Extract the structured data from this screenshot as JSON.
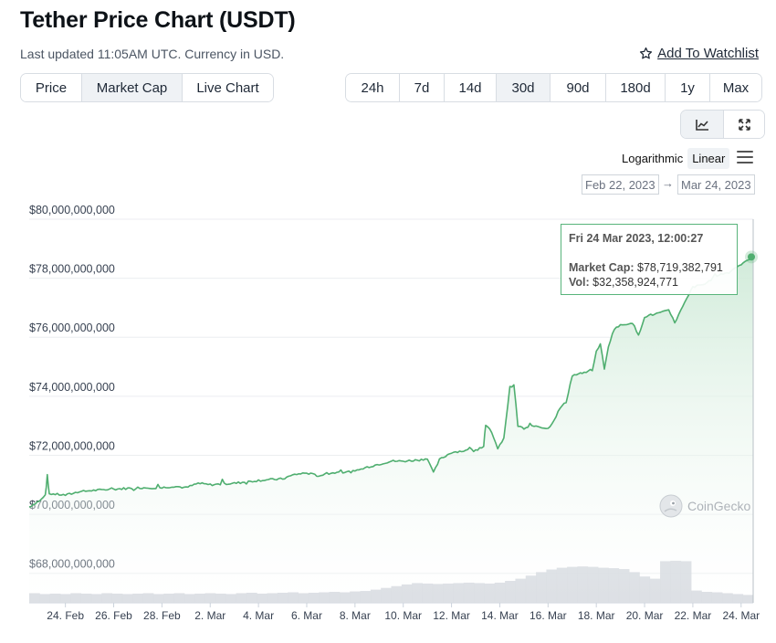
{
  "header": {
    "title": "Tether Price Chart (USDT)",
    "updated": "Last updated 11:05AM UTC. Currency in USD.",
    "watchlist_label": "Add To Watchlist"
  },
  "tabs": [
    {
      "label": "Price",
      "active": false
    },
    {
      "label": "Market Cap",
      "active": true
    },
    {
      "label": "Live Chart",
      "active": false
    }
  ],
  "ranges": [
    {
      "label": "24h",
      "active": false
    },
    {
      "label": "7d",
      "active": false
    },
    {
      "label": "14d",
      "active": false
    },
    {
      "label": "30d",
      "active": true
    },
    {
      "label": "90d",
      "active": false
    },
    {
      "label": "180d",
      "active": false
    },
    {
      "label": "1y",
      "active": false
    },
    {
      "label": "Max",
      "active": false
    }
  ],
  "view_buttons": [
    {
      "icon": "line-chart-icon",
      "active": true
    },
    {
      "icon": "fullscreen-icon",
      "active": false
    }
  ],
  "scale": {
    "log_label": "Logarithmic",
    "linear_label": "Linear",
    "selected": "Linear"
  },
  "date_range": {
    "from": "Feb 22, 2023",
    "arrow": "→",
    "to": "Mar 24, 2023"
  },
  "tooltip": {
    "date": "Fri 24 Mar 2023, 12:00:27",
    "market_cap_label": "Market Cap:",
    "market_cap_value": "$78,719,382,791",
    "vol_label": "Vol:",
    "vol_value": "$32,358,924,771"
  },
  "watermark": "CoinGecko",
  "colors": {
    "line": "#4fae6f",
    "fill_top": "#cfead8",
    "volume": "#cfd4da",
    "tooltip_border": "#58b47b"
  },
  "chart_data": {
    "type": "area",
    "title": "",
    "xlabel": "",
    "ylabel": "",
    "ylim": [
      67000000000,
      80000000000
    ],
    "y_ticks": [
      68000000000,
      70000000000,
      72000000000,
      74000000000,
      76000000000,
      78000000000,
      80000000000
    ],
    "y_tick_labels": [
      "$68,000,000,000",
      "$70,000,000,000",
      "$72,000,000,000",
      "$74,000,000,000",
      "$76,000,000,000",
      "$78,000,000,000",
      "$80,000,000,000"
    ],
    "x_ticks": [
      {
        "date": "2023-02-24",
        "label": "24. Feb"
      },
      {
        "date": "2023-02-26",
        "label": "26. Feb"
      },
      {
        "date": "2023-02-28",
        "label": "28. Feb"
      },
      {
        "date": "2023-03-02",
        "label": "2. Mar"
      },
      {
        "date": "2023-03-04",
        "label": "4. Mar"
      },
      {
        "date": "2023-03-06",
        "label": "6. Mar"
      },
      {
        "date": "2023-03-08",
        "label": "8. Mar"
      },
      {
        "date": "2023-03-10",
        "label": "10. Mar"
      },
      {
        "date": "2023-03-12",
        "label": "12. Mar"
      },
      {
        "date": "2023-03-14",
        "label": "14. Mar"
      },
      {
        "date": "2023-03-16",
        "label": "16. Mar"
      },
      {
        "date": "2023-03-18",
        "label": "18. Mar"
      },
      {
        "date": "2023-03-20",
        "label": "20. Mar"
      },
      {
        "date": "2023-03-22",
        "label": "22. Mar"
      },
      {
        "date": "2023-03-24",
        "label": "24. Mar"
      }
    ],
    "x_start": "2023-02-22T12:00",
    "x_end": "2023-03-24T12:00",
    "grid": true,
    "series": [
      {
        "name": "Market Cap",
        "points": [
          [
            "2023-02-22T12:00",
            70250000000
          ],
          [
            "2023-02-23T00:00",
            70500000000
          ],
          [
            "2023-02-23T04:00",
            70650000000
          ],
          [
            "2023-02-23T06:00",
            71200000000
          ],
          [
            "2023-02-23T08:00",
            70700000000
          ],
          [
            "2023-02-24T00:00",
            70650000000
          ],
          [
            "2023-02-24T12:00",
            70750000000
          ],
          [
            "2023-02-25T00:00",
            70800000000
          ],
          [
            "2023-02-26T00:00",
            70850000000
          ],
          [
            "2023-02-27T00:00",
            70900000000
          ],
          [
            "2023-02-28T00:00",
            70900000000
          ],
          [
            "2023-02-28T12:00",
            70950000000
          ],
          [
            "2023-03-01T00:00",
            70900000000
          ],
          [
            "2023-03-01T12:00",
            71050000000
          ],
          [
            "2023-03-02T00:00",
            71000000000
          ],
          [
            "2023-03-03T00:00",
            71050000000
          ],
          [
            "2023-03-04T00:00",
            71150000000
          ],
          [
            "2023-03-05T00:00",
            71200000000
          ],
          [
            "2023-03-05T12:00",
            71350000000
          ],
          [
            "2023-03-06T00:00",
            71400000000
          ],
          [
            "2023-03-06T12:00",
            71300000000
          ],
          [
            "2023-03-07T00:00",
            71400000000
          ],
          [
            "2023-03-08T00:00",
            71450000000
          ],
          [
            "2023-03-08T12:00",
            71600000000
          ],
          [
            "2023-03-09T00:00",
            71700000000
          ],
          [
            "2023-03-09T12:00",
            71800000000
          ],
          [
            "2023-03-10T00:00",
            71800000000
          ],
          [
            "2023-03-10T18:00",
            71850000000
          ],
          [
            "2023-03-11T00:00",
            71900000000
          ],
          [
            "2023-03-11T06:00",
            71400000000
          ],
          [
            "2023-03-11T12:00",
            71850000000
          ],
          [
            "2023-03-12T00:00",
            72100000000
          ],
          [
            "2023-03-12T12:00",
            72150000000
          ],
          [
            "2023-03-13T00:00",
            72200000000
          ],
          [
            "2023-03-13T08:00",
            72300000000
          ],
          [
            "2023-03-13T10:00",
            73000000000
          ],
          [
            "2023-03-13T16:00",
            72800000000
          ],
          [
            "2023-03-13T22:00",
            72200000000
          ],
          [
            "2023-03-14T04:00",
            72600000000
          ],
          [
            "2023-03-14T10:00",
            74300000000
          ],
          [
            "2023-03-14T14:00",
            74400000000
          ],
          [
            "2023-03-14T18:00",
            73000000000
          ],
          [
            "2023-03-15T00:00",
            72900000000
          ],
          [
            "2023-03-15T12:00",
            73000000000
          ],
          [
            "2023-03-16T00:00",
            72900000000
          ],
          [
            "2023-03-16T06:00",
            73200000000
          ],
          [
            "2023-03-16T12:00",
            73600000000
          ],
          [
            "2023-03-16T18:00",
            73800000000
          ],
          [
            "2023-03-17T00:00",
            74700000000
          ],
          [
            "2023-03-17T12:00",
            74800000000
          ],
          [
            "2023-03-17T20:00",
            74900000000
          ],
          [
            "2023-03-18T00:00",
            75500000000
          ],
          [
            "2023-03-18T04:00",
            75800000000
          ],
          [
            "2023-03-18T08:00",
            74900000000
          ],
          [
            "2023-03-18T12:00",
            75700000000
          ],
          [
            "2023-03-18T18:00",
            76300000000
          ],
          [
            "2023-03-19T00:00",
            76400000000
          ],
          [
            "2023-03-19T12:00",
            76500000000
          ],
          [
            "2023-03-19T18:00",
            76050000000
          ],
          [
            "2023-03-20T00:00",
            76700000000
          ],
          [
            "2023-03-20T12:00",
            76800000000
          ],
          [
            "2023-03-21T00:00",
            76900000000
          ],
          [
            "2023-03-21T06:00",
            76500000000
          ],
          [
            "2023-03-21T12:00",
            76900000000
          ],
          [
            "2023-03-22T00:00",
            77700000000
          ],
          [
            "2023-03-22T12:00",
            77800000000
          ],
          [
            "2023-03-23T00:00",
            78100000000
          ],
          [
            "2023-03-23T12:00",
            78200000000
          ],
          [
            "2023-03-24T00:00",
            78500000000
          ],
          [
            "2023-03-24T12:00",
            78720000000
          ]
        ]
      },
      {
        "name": "Volume",
        "relative": [
          0.22,
          0.2,
          0.21,
          0.2,
          0.22,
          0.21,
          0.2,
          0.22,
          0.21,
          0.2,
          0.21,
          0.22,
          0.2,
          0.21,
          0.22,
          0.2,
          0.21,
          0.22,
          0.21,
          0.2,
          0.22,
          0.23,
          0.21,
          0.22,
          0.23,
          0.24,
          0.22,
          0.23,
          0.24,
          0.25,
          0.24,
          0.26,
          0.27,
          0.3,
          0.34,
          0.38,
          0.42,
          0.45,
          0.44,
          0.43,
          0.44,
          0.45,
          0.46,
          0.45,
          0.44,
          0.46,
          0.5,
          0.55,
          0.62,
          0.7,
          0.76,
          0.8,
          0.82,
          0.83,
          0.82,
          0.8,
          0.79,
          0.77,
          0.7,
          0.6,
          0.55,
          0.95,
          0.96,
          0.95,
          0.28,
          0.25,
          0.24,
          0.22,
          0.2,
          0.18
        ]
      }
    ]
  }
}
